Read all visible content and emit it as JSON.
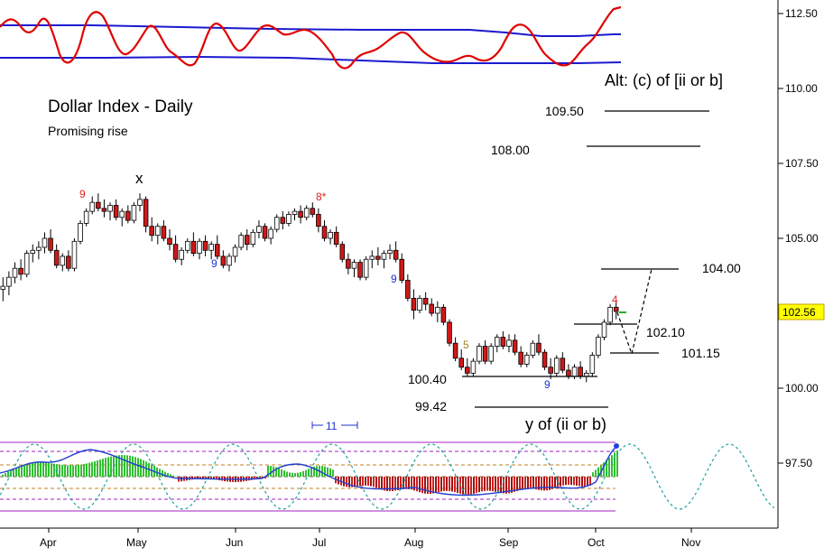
{
  "chart_data": {
    "type": "candlestick",
    "title": "Dollar Index - Daily",
    "subtitle": "Promising rise",
    "y_axis": {
      "ticks": [
        "112.50",
        "110.00",
        "107.50",
        "105.00",
        "102.50",
        "100.00",
        "97.50"
      ],
      "range": [
        95.7,
        112.9
      ]
    },
    "x_axis": {
      "ticks": [
        "Apr",
        "May",
        "Jun",
        "Jul",
        "Aug",
        "Sep",
        "Oct",
        "Nov"
      ]
    },
    "last_price": "102.56",
    "wave_labels": {
      "x": "x",
      "y": "y of (ii or b)",
      "alt": "Alt: (c) of [ii or b]"
    },
    "levels": [
      {
        "value": 109.5,
        "label": "109.50"
      },
      {
        "value": 108.0,
        "label": "108.00"
      },
      {
        "value": 104.0,
        "label": "104.00"
      },
      {
        "value": 102.1,
        "label": "102.10"
      },
      {
        "value": 101.15,
        "label": "101.15"
      },
      {
        "value": 100.4,
        "label": "100.40"
      },
      {
        "value": 99.42,
        "label": "99.42"
      }
    ],
    "count_labels": [
      {
        "text": "9",
        "color": "#e02020"
      },
      {
        "text": "9",
        "color": "#2030d0"
      },
      {
        "text": "8*",
        "color": "#e02020"
      },
      {
        "text": "9",
        "color": "#2030d0"
      },
      {
        "text": "5",
        "color": "#a08020"
      },
      {
        "text": "9",
        "color": "#2030d0"
      },
      {
        "text": "4",
        "color": "#e02020"
      }
    ],
    "cycle_label": "11",
    "candles": [
      [
        103.3,
        103.7,
        102.9,
        103.4
      ],
      [
        103.4,
        103.9,
        103.1,
        103.7
      ],
      [
        103.7,
        104.2,
        103.5,
        104.0
      ],
      [
        104.0,
        104.3,
        103.6,
        103.8
      ],
      [
        103.8,
        104.6,
        103.7,
        104.5
      ],
      [
        104.5,
        104.8,
        104.2,
        104.6
      ],
      [
        104.6,
        104.9,
        104.3,
        104.7
      ],
      [
        104.7,
        105.2,
        104.5,
        105.0
      ],
      [
        105.0,
        105.3,
        104.5,
        104.6
      ],
      [
        104.6,
        104.8,
        104.0,
        104.1
      ],
      [
        104.1,
        104.5,
        103.9,
        104.4
      ],
      [
        104.4,
        104.6,
        103.9,
        104.0
      ],
      [
        104.0,
        105.0,
        103.9,
        104.9
      ],
      [
        104.9,
        105.6,
        104.8,
        105.5
      ],
      [
        105.5,
        106.0,
        105.4,
        105.9
      ],
      [
        105.9,
        106.4,
        105.8,
        106.2
      ],
      [
        106.2,
        106.5,
        105.9,
        106.0
      ],
      [
        106.0,
        106.3,
        105.7,
        105.9
      ],
      [
        105.9,
        106.2,
        105.6,
        106.1
      ],
      [
        106.1,
        106.3,
        105.6,
        105.7
      ],
      [
        105.7,
        106.0,
        105.4,
        105.9
      ],
      [
        105.9,
        106.1,
        105.5,
        105.6
      ],
      [
        105.6,
        106.2,
        105.5,
        106.1
      ],
      [
        106.1,
        106.5,
        105.9,
        106.3
      ],
      [
        106.3,
        106.4,
        105.2,
        105.4
      ],
      [
        105.4,
        105.7,
        104.9,
        105.1
      ],
      [
        105.1,
        105.5,
        104.8,
        105.4
      ],
      [
        105.4,
        105.6,
        104.9,
        105.0
      ],
      [
        105.0,
        105.3,
        104.6,
        104.8
      ],
      [
        104.8,
        105.1,
        104.2,
        104.3
      ],
      [
        104.3,
        104.7,
        104.1,
        104.6
      ],
      [
        104.6,
        105.0,
        104.5,
        104.9
      ],
      [
        104.9,
        105.2,
        104.4,
        104.5
      ],
      [
        104.5,
        105.0,
        104.3,
        104.9
      ],
      [
        104.9,
        105.1,
        104.4,
        104.6
      ],
      [
        104.6,
        104.9,
        104.3,
        104.8
      ],
      [
        104.8,
        105.1,
        104.3,
        104.4
      ],
      [
        104.4,
        104.6,
        104.0,
        104.1
      ],
      [
        104.1,
        104.5,
        103.9,
        104.4
      ],
      [
        104.4,
        104.8,
        104.2,
        104.7
      ],
      [
        104.7,
        105.2,
        104.6,
        105.1
      ],
      [
        105.1,
        105.3,
        104.6,
        104.8
      ],
      [
        104.8,
        105.3,
        104.7,
        105.2
      ],
      [
        105.2,
        105.6,
        105.0,
        105.4
      ],
      [
        105.4,
        105.5,
        104.9,
        105.0
      ],
      [
        105.0,
        105.4,
        104.8,
        105.3
      ],
      [
        105.3,
        105.8,
        105.2,
        105.7
      ],
      [
        105.7,
        105.9,
        105.3,
        105.5
      ],
      [
        105.5,
        105.9,
        105.4,
        105.8
      ],
      [
        105.8,
        106.0,
        105.6,
        105.9
      ],
      [
        105.9,
        106.1,
        105.5,
        105.7
      ],
      [
        105.7,
        106.1,
        105.6,
        106.0
      ],
      [
        106.0,
        106.2,
        105.7,
        105.8
      ],
      [
        105.8,
        106.0,
        105.2,
        105.4
      ],
      [
        105.4,
        105.6,
        104.9,
        105.0
      ],
      [
        105.0,
        105.3,
        104.8,
        105.2
      ],
      [
        105.2,
        105.4,
        104.7,
        104.8
      ],
      [
        104.8,
        104.9,
        104.2,
        104.3
      ],
      [
        104.3,
        104.5,
        103.8,
        104.0
      ],
      [
        104.0,
        104.3,
        103.7,
        104.2
      ],
      [
        104.2,
        104.3,
        103.6,
        103.7
      ],
      [
        103.7,
        104.4,
        103.6,
        104.3
      ],
      [
        104.3,
        104.6,
        104.0,
        104.4
      ],
      [
        104.4,
        104.7,
        104.1,
        104.3
      ],
      [
        104.3,
        104.6,
        104.0,
        104.5
      ],
      [
        104.5,
        104.8,
        104.3,
        104.6
      ],
      [
        104.6,
        104.9,
        104.2,
        104.3
      ],
      [
        104.3,
        104.5,
        103.5,
        103.6
      ],
      [
        103.6,
        103.8,
        102.9,
        103.0
      ],
      [
        103.0,
        103.3,
        102.3,
        102.6
      ],
      [
        102.6,
        103.1,
        102.5,
        103.0
      ],
      [
        103.0,
        103.2,
        102.6,
        102.8
      ],
      [
        102.8,
        103.0,
        102.4,
        102.5
      ],
      [
        102.5,
        102.9,
        102.2,
        102.7
      ],
      [
        102.7,
        102.8,
        102.1,
        102.2
      ],
      [
        102.2,
        102.3,
        101.4,
        101.5
      ],
      [
        101.5,
        101.7,
        100.9,
        101.0
      ],
      [
        101.0,
        101.3,
        100.6,
        100.7
      ],
      [
        100.7,
        101.0,
        100.4,
        100.5
      ],
      [
        100.5,
        101.0,
        100.4,
        100.9
      ],
      [
        100.9,
        101.5,
        100.8,
        101.4
      ],
      [
        101.4,
        101.6,
        100.8,
        100.9
      ],
      [
        100.9,
        101.5,
        100.8,
        101.4
      ],
      [
        101.4,
        101.8,
        101.2,
        101.7
      ],
      [
        101.7,
        101.9,
        101.3,
        101.4
      ],
      [
        101.4,
        101.8,
        101.2,
        101.6
      ],
      [
        101.6,
        101.8,
        101.1,
        101.2
      ],
      [
        101.2,
        101.4,
        100.7,
        100.8
      ],
      [
        100.8,
        101.2,
        100.7,
        101.1
      ],
      [
        101.1,
        101.6,
        101.0,
        101.5
      ],
      [
        101.5,
        101.8,
        101.1,
        101.2
      ],
      [
        101.2,
        101.3,
        100.6,
        100.7
      ],
      [
        100.7,
        101.0,
        100.3,
        100.5
      ],
      [
        100.5,
        101.1,
        100.4,
        101.0
      ],
      [
        101.0,
        101.2,
        100.5,
        100.6
      ],
      [
        100.6,
        100.8,
        100.3,
        100.4
      ],
      [
        100.4,
        100.8,
        100.3,
        100.7
      ],
      [
        100.7,
        100.9,
        100.3,
        100.4
      ],
      [
        100.4,
        100.6,
        100.2,
        100.5
      ],
      [
        100.5,
        101.2,
        100.4,
        101.1
      ],
      [
        101.1,
        101.8,
        101.0,
        101.7
      ],
      [
        101.7,
        102.3,
        101.6,
        102.2
      ],
      [
        102.2,
        102.8,
        102.1,
        102.7
      ],
      [
        102.7,
        102.9,
        102.3,
        102.56
      ]
    ]
  }
}
